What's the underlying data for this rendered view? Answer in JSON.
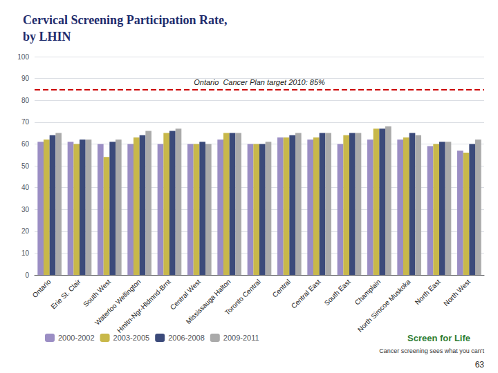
{
  "chart_data": {
    "type": "bar",
    "title": "Cervical Screening Participation Rate,\nby LHIN",
    "categories": [
      "Ontario",
      "Erie St. Clair",
      "South West",
      "Waterloo Wellington",
      "Hmltn-Ngr-Hldmnd-Brnt",
      "Central West",
      "Mississauga Halton",
      "Toronto Central",
      "Central",
      "Central East",
      "South East",
      "Champlain",
      "North Simcoe Muskoka",
      "North East",
      "North West"
    ],
    "series": [
      {
        "name": "2000-2002",
        "color": "#9B8EC4",
        "values": [
          61,
          61,
          60,
          60,
          60,
          60,
          62,
          60,
          63,
          62,
          60,
          62,
          62,
          59,
          57
        ]
      },
      {
        "name": "2003-2005",
        "color": "#C8B84A",
        "values": [
          62,
          60,
          54,
          63,
          65,
          60,
          65,
          60,
          63,
          63,
          64,
          67,
          63,
          60,
          56
        ]
      },
      {
        "name": "2006-2008",
        "color": "#3B4A7A",
        "values": [
          64,
          62,
          61,
          64,
          66,
          61,
          65,
          60,
          64,
          65,
          65,
          67,
          65,
          61,
          60
        ]
      },
      {
        "name": "2009-2011",
        "color": "#AAAAAA",
        "values": [
          65,
          62,
          62,
          66,
          67,
          60,
          65,
          61,
          65,
          65,
          65,
          68,
          64,
          61,
          62
        ]
      }
    ],
    "target_value": 85,
    "target_label": "Ontario  Cancer Plan target 2010: 85%",
    "annotations": [
      "Screen for Life",
      "Cancer screening sees what you can't",
      "63"
    ],
    "ylim": [
      0,
      100
    ],
    "yticks": [
      0,
      10,
      20,
      30,
      40,
      50,
      60,
      70,
      80,
      90,
      100
    ],
    "grid": true,
    "legend": "bottom"
  }
}
